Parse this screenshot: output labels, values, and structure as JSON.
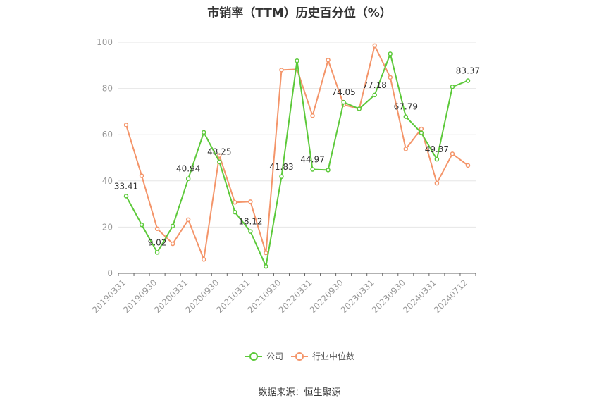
{
  "chart_data": {
    "type": "line",
    "title": "市销率（TTM）历史百分位（%）",
    "source": "数据来源：恒生聚源",
    "ylim": [
      0,
      100
    ],
    "yticks": [
      0,
      20,
      40,
      60,
      80,
      100
    ],
    "grid": true,
    "legend_position": "bottom",
    "x": [
      "20190331",
      "20190630",
      "20190930",
      "20191231",
      "20200331",
      "20200630",
      "20200930",
      "20201231",
      "20210331",
      "20210630",
      "20210930",
      "20211231",
      "20220331",
      "20220630",
      "20220930",
      "20221231",
      "20230331",
      "20230630",
      "20230930",
      "20231231",
      "20240331",
      "20240630",
      "20240712"
    ],
    "xtick_labels": [
      "20190331",
      "20190930",
      "20200331",
      "20200930",
      "20210331",
      "20210930",
      "20220331",
      "20220930",
      "20230331",
      "20230930",
      "20240331",
      "20240712"
    ],
    "series": [
      {
        "name": "公司",
        "color": "#5cc93a",
        "values": [
          33.41,
          21.0,
          9.02,
          20.5,
          40.94,
          61.0,
          48.25,
          26.5,
          18.12,
          3.0,
          41.83,
          92.0,
          44.97,
          44.7,
          74.05,
          71.2,
          77.18,
          95.0,
          67.79,
          60.8,
          49.37,
          80.7,
          83.37
        ],
        "labels": {
          "0": "33.41",
          "2": "9.02",
          "4": "40.94",
          "6": "48.25",
          "8": "18.12",
          "10": "41.83",
          "12": "44.97",
          "14": "74.05",
          "16": "77.18",
          "18": "67.79",
          "20": "49.37",
          "22": "83.37"
        }
      },
      {
        "name": "行业中位数",
        "color": "#f4956a",
        "values": [
          64.2,
          42.2,
          19.3,
          12.8,
          23.2,
          6.0,
          51.0,
          30.7,
          31.0,
          8.8,
          88.0,
          88.3,
          68.2,
          92.3,
          73.0,
          71.2,
          98.5,
          84.8,
          53.8,
          62.5,
          39.0,
          51.7,
          46.7
        ]
      }
    ]
  }
}
